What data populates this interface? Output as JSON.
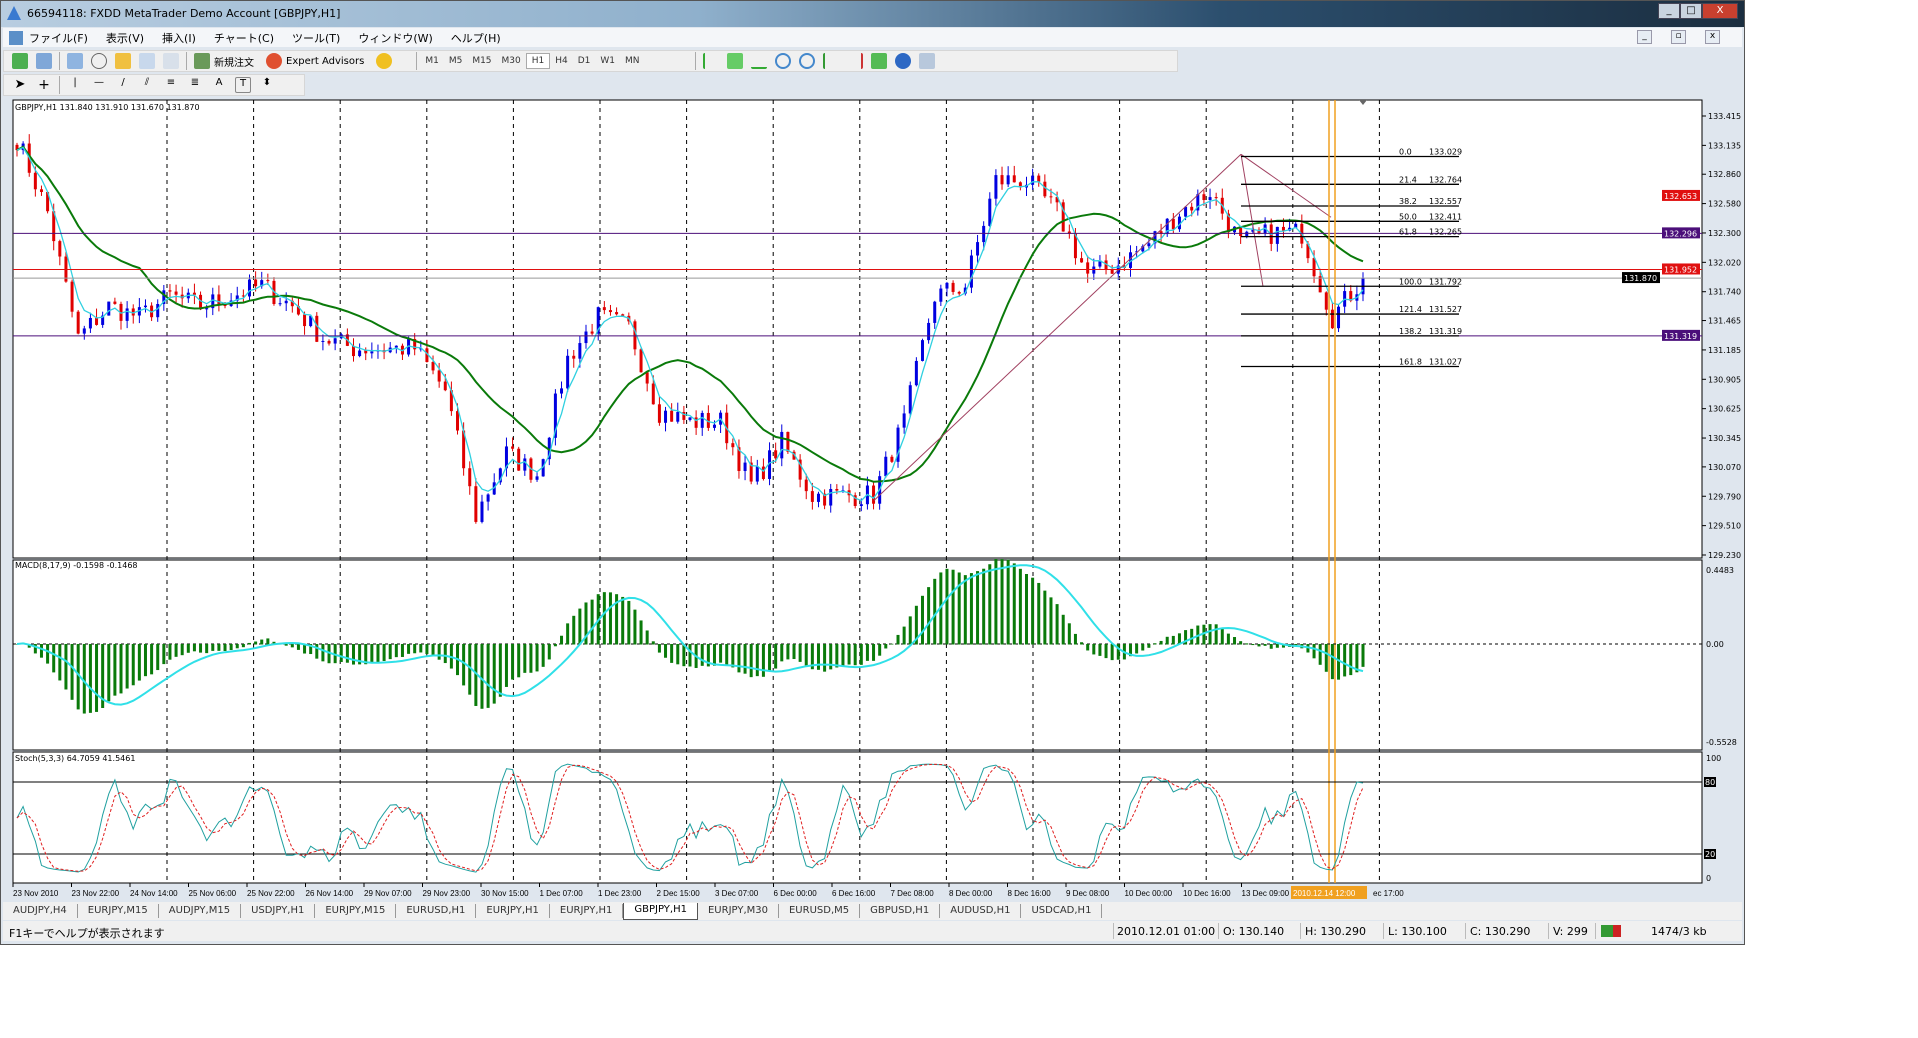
{
  "window": {
    "title": "66594118: FXDD  MetaTrader  Demo Account  [GBPJPY,H1]",
    "minimize": "_",
    "maximize": "□",
    "close": "X"
  },
  "menu": [
    "ファイル(F)",
    "表示(V)",
    "挿入(I)",
    "チャート(C)",
    "ツール(T)",
    "ウィンドウ(W)",
    "ヘルプ(H)"
  ],
  "toolbar": {
    "new_order": "新規注文",
    "expert_advisors": "Expert Advisors",
    "timeframes": [
      "M1",
      "M5",
      "M15",
      "M30",
      "H1",
      "H4",
      "D1",
      "W1",
      "MN"
    ],
    "active_timeframe": "H1"
  },
  "chart": {
    "info": "GBPJPY,H1  131.840 131.910 131.670 131.870",
    "price_ticks": [
      "133.415",
      "133.135",
      "132.860",
      "132.580",
      "132.300",
      "132.020",
      "131.740",
      "131.465",
      "131.185",
      "130.905",
      "130.625",
      "130.345",
      "130.070",
      "129.790",
      "129.510",
      "129.230"
    ],
    "price_range": [
      129.23,
      133.415
    ],
    "closes_every_5_bars": [
      133.2,
      132.5,
      131.3,
      131.6,
      131.5,
      131.7,
      131.6,
      131.7,
      131.8,
      131.6,
      131.3,
      131.2,
      131.2,
      131.2,
      130.8,
      129.6,
      130.2,
      130.0,
      131.1,
      131.5,
      131.4,
      130.6,
      130.5,
      130.5,
      129.9,
      130.3,
      129.8,
      129.8,
      129.8,
      130.5,
      131.7,
      131.8,
      132.8,
      132.8,
      132.5,
      131.9,
      132.0,
      132.2,
      132.5,
      132.7,
      132.2,
      132.3,
      132.3,
      131.5,
      131.87
    ],
    "hlines": [
      {
        "price": 132.296,
        "label": "132.296",
        "color": "#4b0f7a"
      },
      {
        "price": 131.952,
        "label": "131.952",
        "color": "#e01010"
      },
      {
        "price": 131.87,
        "label": "131.870",
        "color": "#000000"
      },
      {
        "price": 131.319,
        "label": "131.319",
        "color": "#4b0f7a"
      }
    ],
    "ask_label": {
      "price": 132.653,
      "label": "132.653",
      "color": "#e01010"
    },
    "fibo": [
      {
        "level": "0.0",
        "price": "133.029"
      },
      {
        "level": "21.4",
        "price": "132.764"
      },
      {
        "level": "38.2",
        "price": "132.557"
      },
      {
        "level": "50.0",
        "price": "132.411"
      },
      {
        "level": "61.8",
        "price": "132.265"
      },
      {
        "level": "100.0",
        "price": "131.792"
      },
      {
        "level": "121.4",
        "price": "131.527"
      },
      {
        "level": "138.2",
        "price": "131.319"
      },
      {
        "level": "161.8",
        "price": "131.027"
      }
    ],
    "colors": {
      "bull": "#0000e0",
      "bear": "#e00000",
      "ma_slow": "#0a7a0a",
      "ma_fast": "#30d0e0",
      "macd_hist": "#0a7a0a",
      "macd_signal": "#30e0e8",
      "stoch_main": "#20a0a0",
      "stoch_signal": "#e02020",
      "vline": "#f0a020"
    }
  },
  "macd": {
    "label": "MACD(8,17,9) -0.1598 -0.1468",
    "ticks": [
      "0.4483",
      "0.00",
      "-0.5528"
    ]
  },
  "stoch": {
    "label": "Stoch(5,3,3) 64.7059 41.5461",
    "ticks": [
      "100",
      "80",
      "20",
      "0"
    ]
  },
  "time_axis": [
    "23 Nov 2010",
    "23 Nov 22:00",
    "24 Nov 14:00",
    "25 Nov 06:00",
    "25 Nov 22:00",
    "26 Nov 14:00",
    "29 Nov 07:00",
    "29 Nov 23:00",
    "30 Nov 15:00",
    "1 Dec 07:00",
    "1 Dec 23:00",
    "2 Dec 15:00",
    "3 Dec 07:00",
    "6 Dec 00:00",
    "6 Dec 16:00",
    "7 Dec 08:00",
    "8 Dec 00:00",
    "8 Dec 16:00",
    "9 Dec 08:00",
    "10 Dec 00:00",
    "10 Dec 16:00",
    "13 Dec 09:00"
  ],
  "time_cursor": "2010.12.14 12:00",
  "time_tail": "ec 17:00",
  "tabs": [
    "AUDJPY,H4",
    "EURJPY,M15",
    "AUDJPY,M15",
    "USDJPY,H1",
    "EURJPY,M15",
    "EURUSD,H1",
    "EURJPY,H1",
    "EURJPY,H1",
    "GBPJPY,H1",
    "EURJPY,M30",
    "EURUSD,M5",
    "GBPUSD,H1",
    "AUDUSD,H1",
    "USDCAD,H1"
  ],
  "active_tab": "GBPJPY,H1",
  "status": {
    "help": "F1キーでヘルプが表示されます",
    "datetime": "2010.12.01 01:00",
    "open": "O: 130.140",
    "high": "H: 130.290",
    "low": "L: 130.100",
    "close": "C: 130.290",
    "volume": "V: 299",
    "traffic": "1474/3 kb"
  }
}
